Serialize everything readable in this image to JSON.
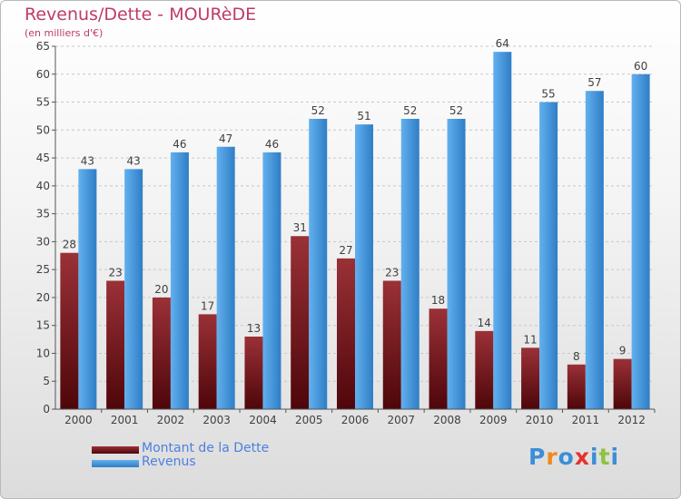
{
  "title": "Revenus/Dette - MOURèDE",
  "subtitle": "(en milliers d'€)",
  "logo": {
    "text": "Proxiti",
    "colors": [
      "#3b8ed8",
      "#f08a1c",
      "#3b8ed8",
      "#e8312c",
      "#3b8ed8",
      "#8bc43f",
      "#3b8ed8"
    ]
  },
  "colors": {
    "dette_top": "#9a3137",
    "dette_bottom": "#4e060a",
    "revenus_top": "#62b0ee",
    "revenus_bottom": "#2f7ec6",
    "grid": "#c8c8c8",
    "axis_text": "#404040",
    "label_text": "#404040"
  },
  "chart_data": {
    "type": "bar",
    "title": "Revenus/Dette - MOURèDE",
    "subtitle": "(en milliers d'€)",
    "xlabel": "",
    "ylabel": "",
    "ylim": [
      0,
      65
    ],
    "yticks": [
      0,
      5,
      10,
      15,
      20,
      25,
      30,
      35,
      40,
      45,
      50,
      55,
      60,
      65
    ],
    "grid": true,
    "legend_position": "bottom-left",
    "categories": [
      "2000",
      "2001",
      "2002",
      "2003",
      "2004",
      "2005",
      "2006",
      "2007",
      "2008",
      "2009",
      "2010",
      "2011",
      "2012"
    ],
    "series": [
      {
        "name": "Montant de la Dette",
        "values": [
          28,
          23,
          20,
          17,
          13,
          31,
          27,
          23,
          18,
          14,
          11,
          8,
          9
        ]
      },
      {
        "name": "Revenus",
        "values": [
          43,
          43,
          46,
          47,
          46,
          52,
          51,
          52,
          52,
          64,
          55,
          57,
          60
        ]
      }
    ]
  }
}
